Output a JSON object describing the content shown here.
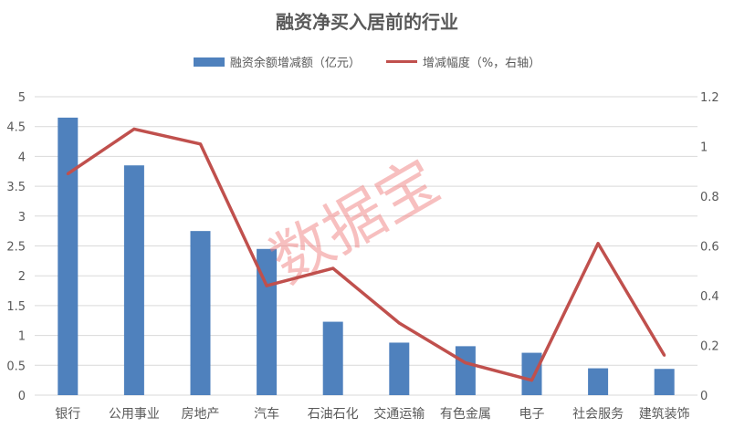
{
  "chart_data": {
    "type": "bar",
    "title": "融资净买入居前的行业",
    "categories": [
      "银行",
      "公用事业",
      "房地产",
      "汽车",
      "石油石化",
      "交通运输",
      "有色金属",
      "电子",
      "社会服务",
      "建筑装饰"
    ],
    "series": [
      {
        "name": "融资余额增减额（亿元）",
        "type": "bar",
        "axis": "left",
        "color": "#4f81bd",
        "values": [
          4.65,
          3.85,
          2.75,
          2.45,
          1.23,
          0.88,
          0.82,
          0.71,
          0.45,
          0.44
        ]
      },
      {
        "name": "增减幅度（%，右轴）",
        "type": "line",
        "axis": "right",
        "color": "#c0504d",
        "values": [
          0.89,
          1.07,
          1.01,
          0.44,
          0.51,
          0.29,
          0.13,
          0.06,
          0.61,
          0.16
        ]
      }
    ],
    "y_left": {
      "range": [
        0,
        5
      ],
      "ticks": [
        "0",
        "0.5",
        "1",
        "1.5",
        "2",
        "2.5",
        "3",
        "3.5",
        "4",
        "4.5",
        "5"
      ]
    },
    "y_right": {
      "range": [
        0,
        1.2
      ],
      "ticks": [
        "0",
        "0.2",
        "0.4",
        "0.6",
        "0.8",
        "1",
        "1.2"
      ]
    },
    "grid": true,
    "legend": "top",
    "watermark": "数据宝"
  }
}
